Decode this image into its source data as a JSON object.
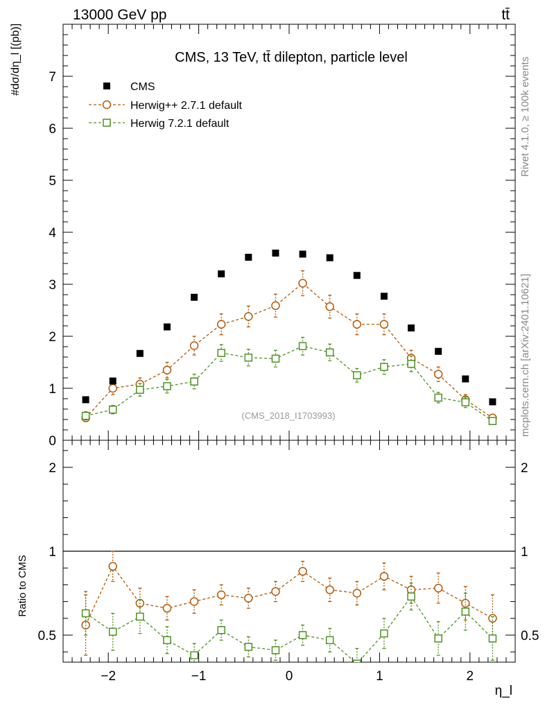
{
  "header": {
    "left": "13000 GeV pp",
    "right": "tt̄"
  },
  "side_labels": {
    "upper": "Rivet 4.1.0, ≥ 100k events",
    "lower": "mcplots.cern.ch [arXiv:2401.10621]"
  },
  "chart_data": [
    {
      "type": "scatter",
      "panel": "main",
      "title": "CMS, 13 TeV, tt̄ dilepton, particle level",
      "watermark": "(CMS_2018_I1703993)",
      "ylabel": "#dσ/dη_l [(pb)]",
      "xlabel": "η_l",
      "xlim": [
        -2.5,
        2.5
      ],
      "ylim": [
        0,
        8
      ],
      "x_ticks": [
        -2,
        -1,
        0,
        1,
        2
      ],
      "x_tick_labels": [
        "−2",
        "−1",
        "0",
        "1",
        "2"
      ],
      "y_ticks": [
        0,
        1,
        2,
        3,
        4,
        5,
        6,
        7
      ],
      "y_tick_labels": [
        "0",
        "1",
        "2",
        "3",
        "4",
        "5",
        "6",
        "7"
      ],
      "legend_position": "top-left",
      "x": [
        -2.25,
        -1.95,
        -1.65,
        -1.35,
        -1.05,
        -0.75,
        -0.45,
        -0.15,
        0.15,
        0.45,
        0.75,
        1.05,
        1.35,
        1.65,
        1.95,
        2.25
      ],
      "series": [
        {
          "name": "CMS",
          "style": "data",
          "color": "#000000",
          "values": [
            0.78,
            1.14,
            1.67,
            2.18,
            2.75,
            3.2,
            3.52,
            3.6,
            3.58,
            3.51,
            3.17,
            2.77,
            2.16,
            1.71,
            1.18,
            0.74
          ]
        },
        {
          "name": "Herwig++ 2.7.1 default",
          "style": "circle",
          "color": "#b35806",
          "values": [
            0.43,
            1.0,
            1.08,
            1.35,
            1.82,
            2.23,
            2.38,
            2.59,
            3.02,
            2.57,
            2.23,
            2.23,
            1.58,
            1.27,
            0.78,
            0.43
          ],
          "errors": [
            0.06,
            0.12,
            0.12,
            0.15,
            0.18,
            0.2,
            0.2,
            0.22,
            0.24,
            0.22,
            0.2,
            0.2,
            0.15,
            0.14,
            0.1,
            0.06
          ]
        },
        {
          "name": "Herwig 7.2.1 default",
          "style": "square",
          "color": "#4d9221",
          "values": [
            0.47,
            0.59,
            0.97,
            1.04,
            1.13,
            1.68,
            1.59,
            1.57,
            1.81,
            1.69,
            1.25,
            1.41,
            1.47,
            0.82,
            0.73,
            0.37
          ],
          "errors": [
            0.08,
            0.08,
            0.12,
            0.13,
            0.14,
            0.16,
            0.16,
            0.16,
            0.17,
            0.16,
            0.13,
            0.14,
            0.15,
            0.1,
            0.1,
            0.06
          ]
        }
      ]
    },
    {
      "type": "scatter",
      "panel": "ratio",
      "ylabel": "Ratio to CMS",
      "xlim": [
        -2.5,
        2.5
      ],
      "ylim": [
        0.35,
        2.35
      ],
      "y_ticks": [
        0.5,
        1,
        2
      ],
      "y_tick_labels": [
        "0.5",
        "1",
        "2"
      ],
      "x": [
        -2.25,
        -1.95,
        -1.65,
        -1.35,
        -1.05,
        -0.75,
        -0.45,
        -0.15,
        0.15,
        0.45,
        0.75,
        1.05,
        1.35,
        1.65,
        1.95,
        2.25
      ],
      "series": [
        {
          "name": "Herwig++ 2.7.1 default",
          "style": "circle",
          "color": "#b35806",
          "values": [
            0.56,
            0.91,
            0.69,
            0.66,
            0.7,
            0.74,
            0.72,
            0.76,
            0.88,
            0.77,
            0.75,
            0.85,
            0.77,
            0.78,
            0.69,
            0.6
          ],
          "errors": [
            0.18,
            0.09,
            0.09,
            0.07,
            0.07,
            0.06,
            0.06,
            0.06,
            0.06,
            0.07,
            0.07,
            0.08,
            0.08,
            0.09,
            0.1,
            0.14
          ]
        },
        {
          "name": "Herwig 7.2.1 default",
          "style": "square",
          "color": "#4d9221",
          "values": [
            0.63,
            0.52,
            0.61,
            0.47,
            0.38,
            0.53,
            0.43,
            0.41,
            0.5,
            0.47,
            0.33,
            0.51,
            0.73,
            0.48,
            0.64,
            0.48
          ],
          "errors": [
            0.13,
            0.11,
            0.1,
            0.08,
            0.07,
            0.06,
            0.06,
            0.06,
            0.06,
            0.07,
            0.09,
            0.09,
            0.08,
            0.1,
            0.11,
            0.13
          ]
        }
      ]
    }
  ]
}
